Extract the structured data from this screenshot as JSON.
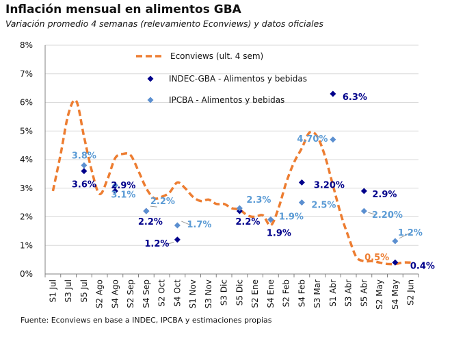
{
  "chart_data": {
    "type": "line",
    "title": "Inflación mensual en alimentos GBA",
    "subtitle": "Variación promedio 4 semanas (relevamiento Econviews) y datos oficiales",
    "source": "Fuente: Econviews en base a INDEC, IPCBA y estimaciones propias",
    "categories": [
      "S1 Jul",
      "S3 Jul",
      "S5 Jul",
      "S2 Ago",
      "S4 Ago",
      "S2 Sep",
      "S4 Sep",
      "S2 Oct",
      "S4 Oct",
      "S1 Nov",
      "S3 Nov",
      "S3 Dic",
      "S5 Dic",
      "S2 Ene",
      "S4 Ene",
      "S2 Feb",
      "S4 Feb",
      "S3 Mar",
      "S1 Abr",
      "S3 Abr",
      "S5 Abr",
      "S2 May",
      "S4 May",
      "S2 Jun"
    ],
    "ylim": [
      0,
      8
    ],
    "yticks": [
      "0%",
      "1%",
      "2%",
      "3%",
      "4%",
      "5%",
      "6%",
      "7%",
      "8%"
    ],
    "grid": true,
    "colors": {
      "line": "#ED7D31",
      "indec": "#00008B",
      "ipcba": "#5B8FD0",
      "indec_label": "#00008B",
      "ipcba_label": "#5B9BD5",
      "grid": "#D9D9D9",
      "axis": "#808080"
    },
    "legend": [
      {
        "name": "Econviews (ult. 4 sem)",
        "marker": "dash"
      },
      {
        "name": "INDEC-GBA - Alimentos y bebidas",
        "marker": "diamond-dark"
      },
      {
        "name": "IPCBA - Alimentos y bebidas",
        "marker": "diamond-light"
      }
    ],
    "series": [
      {
        "name": "Econviews (ult. 4 sem)",
        "kind": "line",
        "points": [
          [
            0,
            2.9
          ],
          [
            0.5,
            4.2
          ],
          [
            1,
            5.6
          ],
          [
            1.5,
            6.05
          ],
          [
            2,
            4.8
          ],
          [
            2.5,
            3.6
          ],
          [
            3,
            2.8
          ],
          [
            3.5,
            3.3
          ],
          [
            4,
            4.05
          ],
          [
            4.5,
            4.2
          ],
          [
            5,
            4.15
          ],
          [
            5.5,
            3.6
          ],
          [
            6,
            3.0
          ],
          [
            6.5,
            2.65
          ],
          [
            7,
            2.7
          ],
          [
            7.5,
            2.85
          ],
          [
            8,
            3.2
          ],
          [
            8.5,
            3.0
          ],
          [
            9,
            2.7
          ],
          [
            9.5,
            2.55
          ],
          [
            10,
            2.6
          ],
          [
            10.5,
            2.45
          ],
          [
            11,
            2.45
          ],
          [
            11.5,
            2.3
          ],
          [
            12,
            2.25
          ],
          [
            12.5,
            2.05
          ],
          [
            13,
            2.0
          ],
          [
            13.5,
            2.05
          ],
          [
            14,
            1.7
          ],
          [
            14.5,
            2.3
          ],
          [
            15,
            3.2
          ],
          [
            15.5,
            3.9
          ],
          [
            16,
            4.4
          ],
          [
            16.5,
            4.95
          ],
          [
            17,
            4.8
          ],
          [
            17.5,
            4.1
          ],
          [
            18,
            3.1
          ],
          [
            18.5,
            2.1
          ],
          [
            19,
            1.3
          ],
          [
            19.5,
            0.6
          ],
          [
            20,
            0.45
          ],
          [
            20.5,
            0.45
          ],
          [
            21,
            0.4
          ],
          [
            21.5,
            0.35
          ],
          [
            22,
            0.35
          ],
          [
            22.5,
            0.4
          ],
          [
            23,
            0.4
          ]
        ]
      },
      {
        "name": "INDEC-GBA - Alimentos y bebidas",
        "kind": "scatter",
        "points": [
          {
            "x": 2,
            "y": 3.6,
            "label": "3.6%"
          },
          {
            "x": 4,
            "y": 2.9,
            "label": "2.9%"
          },
          {
            "x": 6,
            "y": 2.2,
            "label": "2.2%"
          },
          {
            "x": 8,
            "y": 1.2,
            "label": "1.2%"
          },
          {
            "x": 12,
            "y": 2.2,
            "label": "2.2%"
          },
          {
            "x": 14,
            "y": 1.9,
            "label": "1.9%"
          },
          {
            "x": 16,
            "y": 3.2,
            "label": "3.20%"
          },
          {
            "x": 18,
            "y": 6.3,
            "label": "6.3%"
          },
          {
            "x": 20,
            "y": 2.9,
            "label": "2.9%"
          },
          {
            "x": 22,
            "y": 0.4,
            "label": "0.4%"
          }
        ]
      },
      {
        "name": "IPCBA - Alimentos y bebidas",
        "kind": "scatter",
        "points": [
          {
            "x": 2,
            "y": 3.8,
            "label": "3.8%"
          },
          {
            "x": 4,
            "y": 3.1,
            "label": "3.1%"
          },
          {
            "x": 6,
            "y": 2.2,
            "label": "2.2%"
          },
          {
            "x": 8,
            "y": 1.7,
            "label": "1.7%"
          },
          {
            "x": 12,
            "y": 2.3,
            "label": "2.3%"
          },
          {
            "x": 14,
            "y": 1.9,
            "label": "1.9%"
          },
          {
            "x": 16,
            "y": 2.5,
            "label": "2.5%"
          },
          {
            "x": 18,
            "y": 4.7,
            "label": "4.70%"
          },
          {
            "x": 20,
            "y": 2.2,
            "label": "2.20%"
          },
          {
            "x": 22,
            "y": 1.15,
            "label": "1.2%"
          }
        ]
      }
    ],
    "annotations": [
      {
        "text": "0.5%",
        "x": 21,
        "y": 0.5
      }
    ]
  }
}
